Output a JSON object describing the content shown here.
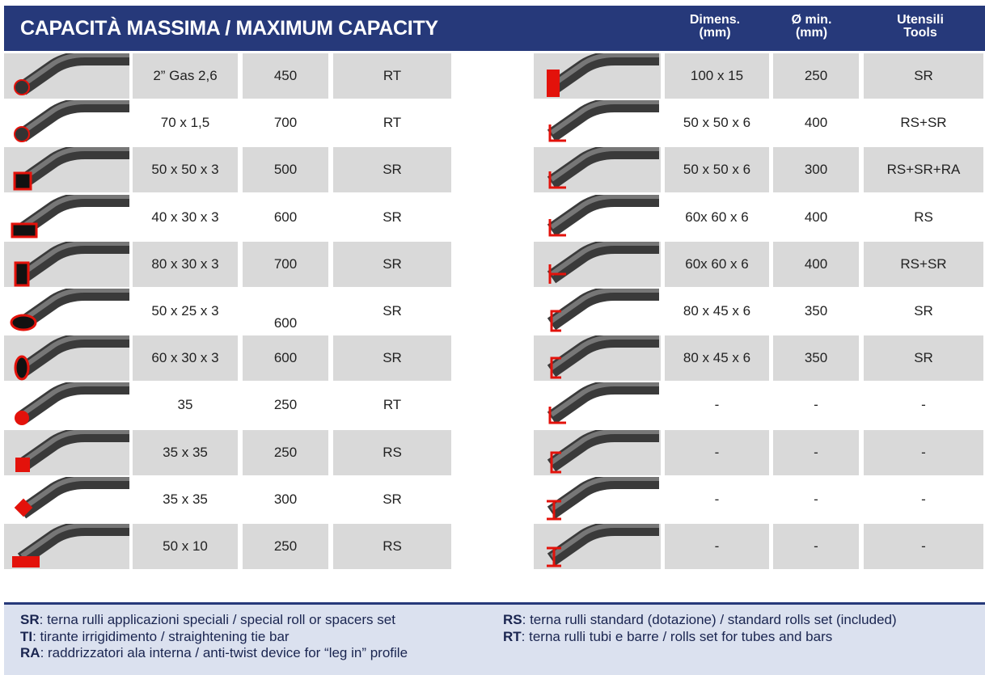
{
  "header": {
    "title": "CAPACITÀ MASSIMA / MAXIMUM CAPACITY",
    "columns": [
      [
        "Dimens.",
        "(mm)"
      ],
      [
        "Ø min.",
        "(mm)"
      ],
      [
        "Utensili",
        "Tools"
      ]
    ]
  },
  "left_table": {
    "rows": [
      [
        "2” Gas 2,6",
        "450",
        "RT"
      ],
      [
        "70 x 1,5",
        "700",
        "RT"
      ],
      [
        "50 x 50 x 3",
        "500",
        "SR"
      ],
      [
        "40 x 30 x 3",
        "600",
        "SR"
      ],
      [
        "80 x 30 x 3",
        "700",
        "SR"
      ],
      [
        "50 x 25 x 3",
        "600",
        "SR"
      ],
      [
        "60 x 30 x 3",
        "600",
        "SR"
      ],
      [
        "35",
        "250",
        "RT"
      ],
      [
        "35 x 35",
        "250",
        "RS"
      ],
      [
        "35 x 35",
        "300",
        "SR"
      ],
      [
        "50 x 10",
        "250",
        "RS"
      ]
    ]
  },
  "right_table": {
    "rows": [
      [
        "100 x 15",
        "250",
        "SR"
      ],
      [
        "50 x 50 x 6",
        "400",
        "RS+SR"
      ],
      [
        "50 x 50 x 6",
        "300",
        "RS+SR+RA"
      ],
      [
        "60x 60 x 6",
        "400",
        "RS"
      ],
      [
        "60x 60 x 6",
        "400",
        "RS+SR"
      ],
      [
        "80 x 45 x 6",
        "350",
        "SR"
      ],
      [
        "80 x 45 x 6",
        "350",
        "SR"
      ],
      [
        "-",
        "-",
        "-"
      ],
      [
        "-",
        "-",
        "-"
      ],
      [
        "-",
        "-",
        "-"
      ],
      [
        "-",
        "-",
        "-"
      ]
    ]
  },
  "legend": {
    "left": [
      {
        "code": "SR",
        "text": ": terna rulli applicazioni speciali / special roll or spacers set"
      },
      {
        "code": "TI",
        "text": ": tirante irrigidimento / straightening tie bar"
      },
      {
        "code": "RA",
        "text": ": raddrizzatori ala interna / anti-twist device for “leg in” profile"
      }
    ],
    "right": [
      {
        "code": "RS",
        "text": ": terna rulli standard (dotazione) / standard rolls set (included)"
      },
      {
        "code": "RT",
        "text": ": terna rulli tubi e barre / rolls set for tubes and bars"
      }
    ]
  }
}
